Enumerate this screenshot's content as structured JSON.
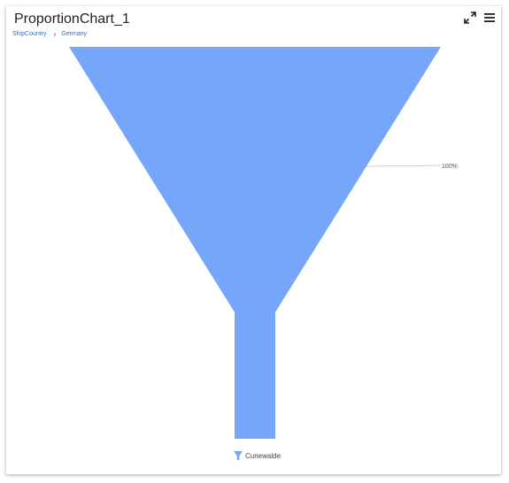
{
  "header": {
    "title": "ProportionChart_1",
    "breadcrumb": [
      "ShipCountry",
      "Germany"
    ]
  },
  "toolbar": {
    "expand_icon": "expand-icon",
    "menu_icon": "menu-icon"
  },
  "colors": {
    "funnel_fill": "#75a6fa",
    "connector": "#b8bcc4",
    "link": "#1a73e8"
  },
  "chart_data": {
    "type": "funnel",
    "title": "",
    "categories": [
      "Cunewalde"
    ],
    "values": [
      100
    ],
    "data_labels": [
      "100%"
    ],
    "legend": {
      "entries": [
        "Cunewalde"
      ],
      "placement": "bottom-center"
    }
  }
}
